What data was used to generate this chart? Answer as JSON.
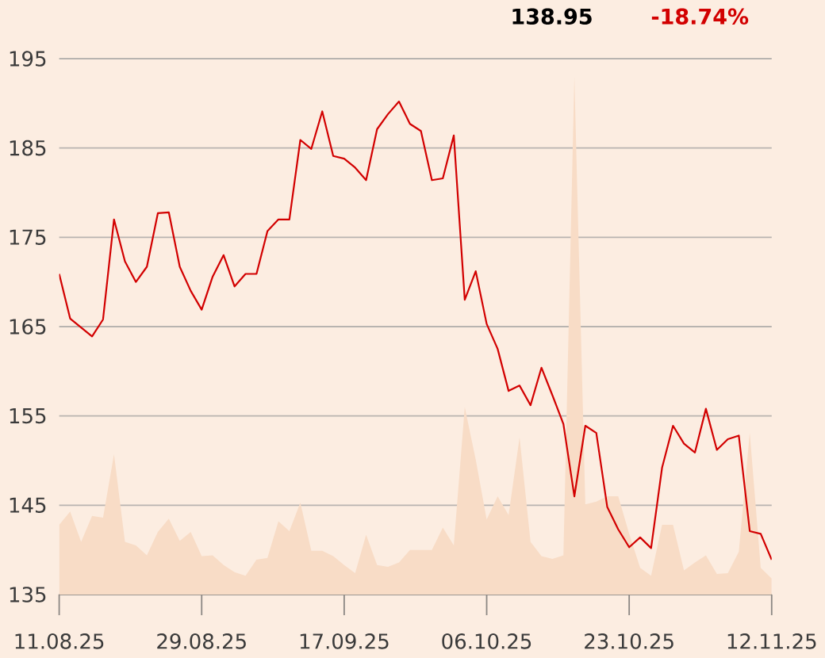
{
  "chart_data": {
    "type": "line",
    "categories": [
      "11.08.25",
      null,
      null,
      null,
      null,
      null,
      null,
      null,
      null,
      null,
      null,
      null,
      null,
      "29.08.25",
      null,
      null,
      null,
      null,
      null,
      null,
      null,
      null,
      null,
      null,
      null,
      null,
      "17.09.25",
      null,
      null,
      null,
      null,
      null,
      null,
      null,
      null,
      null,
      null,
      null,
      null,
      "06.10.25",
      null,
      null,
      null,
      null,
      null,
      null,
      null,
      null,
      null,
      null,
      null,
      null,
      "23.10.25",
      null,
      null,
      null,
      null,
      null,
      null,
      null,
      null,
      null,
      null,
      null,
      null,
      "12.11.25"
    ],
    "series": [
      {
        "type": "area",
        "color": "#f8dcc6",
        "values": [
          142.8,
          144.3,
          140.9,
          143.8,
          143.6,
          150.7,
          140.9,
          140.5,
          139.4,
          142.0,
          143.5,
          141.0,
          142.0,
          139.3,
          139.4,
          138.3,
          137.5,
          137.1,
          138.9,
          139.1,
          143.2,
          142.1,
          145.3,
          139.9,
          139.9,
          139.3,
          138.3,
          137.4,
          141.7,
          138.3,
          138.1,
          138.6,
          140.0,
          140.0,
          140.0,
          142.5,
          140.5,
          156.0,
          150.1,
          143.4,
          146.0,
          143.9,
          152.6,
          140.9,
          139.3,
          139.0,
          139.4,
          193.0,
          145.1,
          145.4,
          146.0,
          146.0,
          141.8,
          138.0,
          137.1,
          142.8,
          142.8,
          137.7,
          138.6,
          139.4,
          137.3,
          137.4,
          139.8,
          153.1,
          138.0,
          136.8
        ]
      },
      {
        "type": "line",
        "color": "#d20000",
        "values": [
          170.9,
          165.9,
          164.9,
          163.9,
          165.8,
          177.0,
          172.3,
          170.0,
          171.7,
          177.7,
          177.8,
          171.7,
          169.0,
          166.9,
          170.6,
          173.0,
          169.5,
          170.9,
          170.9,
          175.7,
          177.0,
          177.0,
          185.9,
          184.9,
          189.1,
          184.1,
          183.8,
          182.8,
          181.4,
          187.1,
          188.8,
          190.2,
          187.7,
          186.9,
          181.4,
          181.6,
          186.4,
          168.0,
          171.2,
          165.3,
          162.5,
          157.8,
          158.4,
          156.2,
          160.4,
          157.3,
          154.1,
          146.0,
          153.9,
          153.1,
          144.8,
          142.3,
          140.3,
          141.4,
          140.2,
          149.2,
          153.9,
          151.9,
          150.9,
          155.8,
          151.2,
          152.4,
          152.8,
          142.1,
          141.8,
          138.9
        ]
      }
    ],
    "ylim": [
      135,
      195
    ],
    "yticks": [
      135,
      145,
      155,
      165,
      175,
      185,
      195
    ],
    "grid": "y",
    "annotations": [
      "138.95",
      "-18.74%"
    ]
  }
}
